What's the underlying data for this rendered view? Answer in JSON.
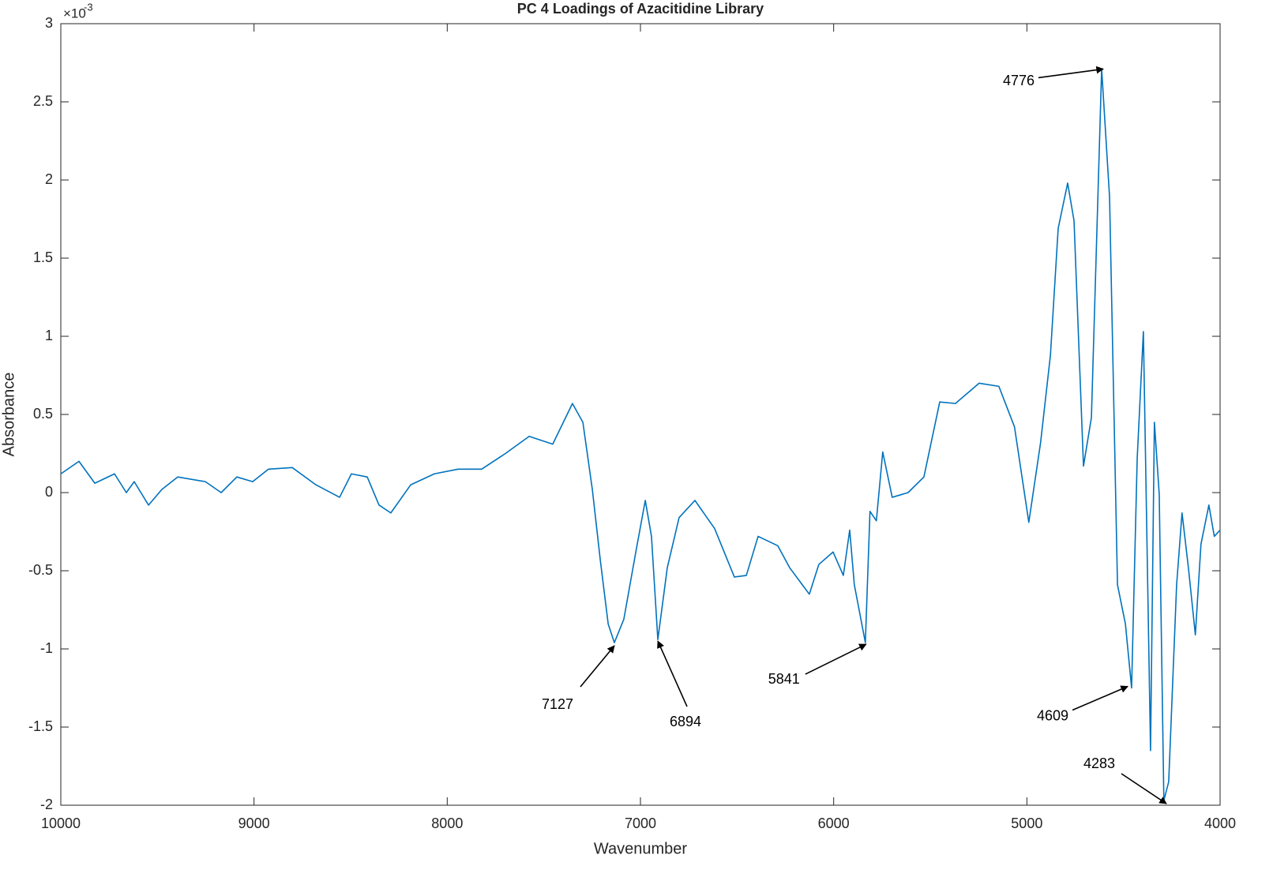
{
  "chart_data": {
    "type": "line",
    "title": "PC 4 Loadings of Azacitidine Library",
    "x_label": "Wavenumber",
    "y_label": "Absorbance",
    "y_multiplier": "×10",
    "y_exponent": "-3",
    "color": "#0072bd",
    "xlim": [
      10000,
      4000
    ],
    "xticks": [
      10000,
      9000,
      8000,
      7000,
      6000,
      5000,
      4000
    ],
    "ylim": [
      -2,
      3
    ],
    "yticks": [
      -2,
      -1.5,
      -1,
      -0.5,
      0,
      0.5,
      1,
      1.5,
      2,
      2.5,
      3
    ],
    "x": [
      10000,
      9906,
      9824,
      9722,
      9661,
      9620,
      9546,
      9477,
      9395,
      9252,
      9170,
      9089,
      9007,
      8925,
      8802,
      8680,
      8557,
      8496,
      8414,
      8353,
      8292,
      8189,
      8067,
      7944,
      7822,
      7699,
      7576,
      7454,
      7352,
      7298,
      7249,
      7208,
      7167,
      7135,
      7086,
      7024,
      6975,
      6943,
      6910,
      6861,
      6800,
      6718,
      6616,
      6514,
      6452,
      6391,
      6289,
      6228,
      6126,
      6077,
      6003,
      5950,
      5917,
      5893,
      5836,
      5812,
      5779,
      5746,
      5697,
      5615,
      5533,
      5451,
      5370,
      5247,
      5145,
      5064,
      4990,
      4929,
      4878,
      4838,
      4789,
      4756,
      4707,
      4666,
      4613,
      4572,
      4531,
      4490,
      4458,
      4429,
      4397,
      4360,
      4340,
      4315,
      4291,
      4266,
      4225,
      4197,
      4164,
      4128,
      4099,
      4058,
      4030,
      4000
    ],
    "values": [
      0.12,
      0.2,
      0.06,
      0.12,
      0,
      0.07,
      -0.08,
      0.02,
      0.1,
      0.07,
      0,
      0.1,
      0.07,
      0.15,
      0.16,
      0.05,
      -0.03,
      0.12,
      0.1,
      -0.08,
      -0.13,
      0.05,
      0.12,
      0.15,
      0.15,
      0.25,
      0.36,
      0.31,
      0.57,
      0.45,
      0.02,
      -0.43,
      -0.84,
      -0.96,
      -0.81,
      -0.38,
      -0.05,
      -0.28,
      -0.94,
      -0.48,
      -0.16,
      -0.05,
      -0.23,
      -0.54,
      -0.53,
      -0.28,
      -0.34,
      -0.48,
      -0.65,
      -0.46,
      -0.38,
      -0.53,
      -0.24,
      -0.59,
      -0.96,
      -0.12,
      -0.18,
      0.26,
      -0.03,
      0,
      0.1,
      0.58,
      0.57,
      0.7,
      0.68,
      0.42,
      -0.19,
      0.32,
      0.88,
      1.69,
      1.98,
      1.74,
      0.17,
      0.48,
      2.71,
      1.89,
      -0.59,
      -0.84,
      -1.25,
      0.22,
      1.03,
      -1.65,
      0.45,
      -0.01,
      -1.97,
      -1.85,
      -0.59,
      -0.13,
      -0.48,
      -0.91,
      -0.33,
      -0.08,
      -0.28,
      -0.24
    ],
    "annotations": [
      {
        "text": "7127",
        "x": 7135,
        "y": -0.98
      },
      {
        "text": "6894",
        "x": 6910,
        "y": -0.95
      },
      {
        "text": "5841",
        "x": 5832,
        "y": -0.97
      },
      {
        "text": "4776",
        "x": 4605,
        "y": 2.71
      },
      {
        "text": "4609",
        "x": 4478,
        "y": -1.24
      },
      {
        "text": "4283",
        "x": 4278,
        "y": -1.99
      }
    ]
  }
}
